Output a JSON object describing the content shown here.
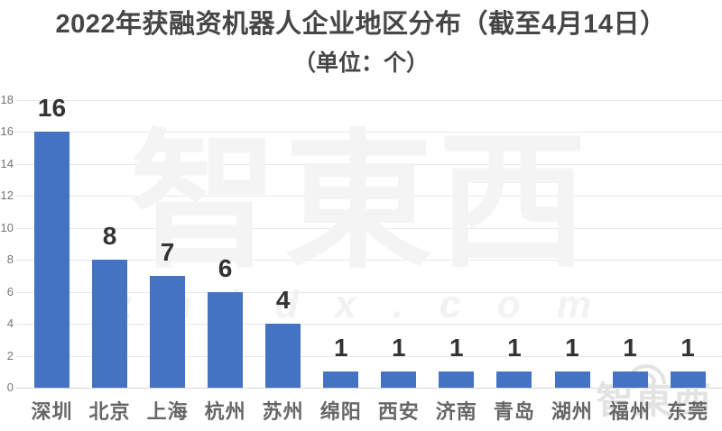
{
  "title": "2022年获融资机器人企业地区分布（截至4月14日）",
  "subtitle": "（单位：个）",
  "watermark": {
    "logo_text": "智東西",
    "domain_text": "zhidx.com",
    "corner_logo_text": "智東西",
    "wifi_icon": "wifi-arcs"
  },
  "colors": {
    "bar": "#4473c4",
    "title_text": "#464646",
    "value_label": "#333333",
    "x_label": "#666666",
    "y_label": "#757575",
    "gridline": "#e8e8e8",
    "baseline": "#d6d6d6",
    "watermark": "#f4f4f4",
    "corner_watermark": "#e3e3e3",
    "background": "#ffffff"
  },
  "chart_data": {
    "type": "bar",
    "title": "2022年获融资机器人企业地区分布（截至4月14日）",
    "subtitle": "（单位：个）",
    "categories": [
      "深圳",
      "北京",
      "上海",
      "杭州",
      "苏州",
      "绵阳",
      "西安",
      "济南",
      "青岛",
      "湖州",
      "福州",
      "东莞"
    ],
    "values": [
      16,
      8,
      7,
      6,
      4,
      1,
      1,
      1,
      1,
      1,
      1,
      1
    ],
    "data_labels_shown": true,
    "xlabel": "",
    "ylabel": "",
    "ylim": [
      0,
      18
    ],
    "yticks": [
      0,
      2,
      4,
      6,
      8,
      10,
      12,
      14,
      16,
      18
    ],
    "grid": true,
    "legend": false,
    "bar_color": "#4473c4"
  }
}
